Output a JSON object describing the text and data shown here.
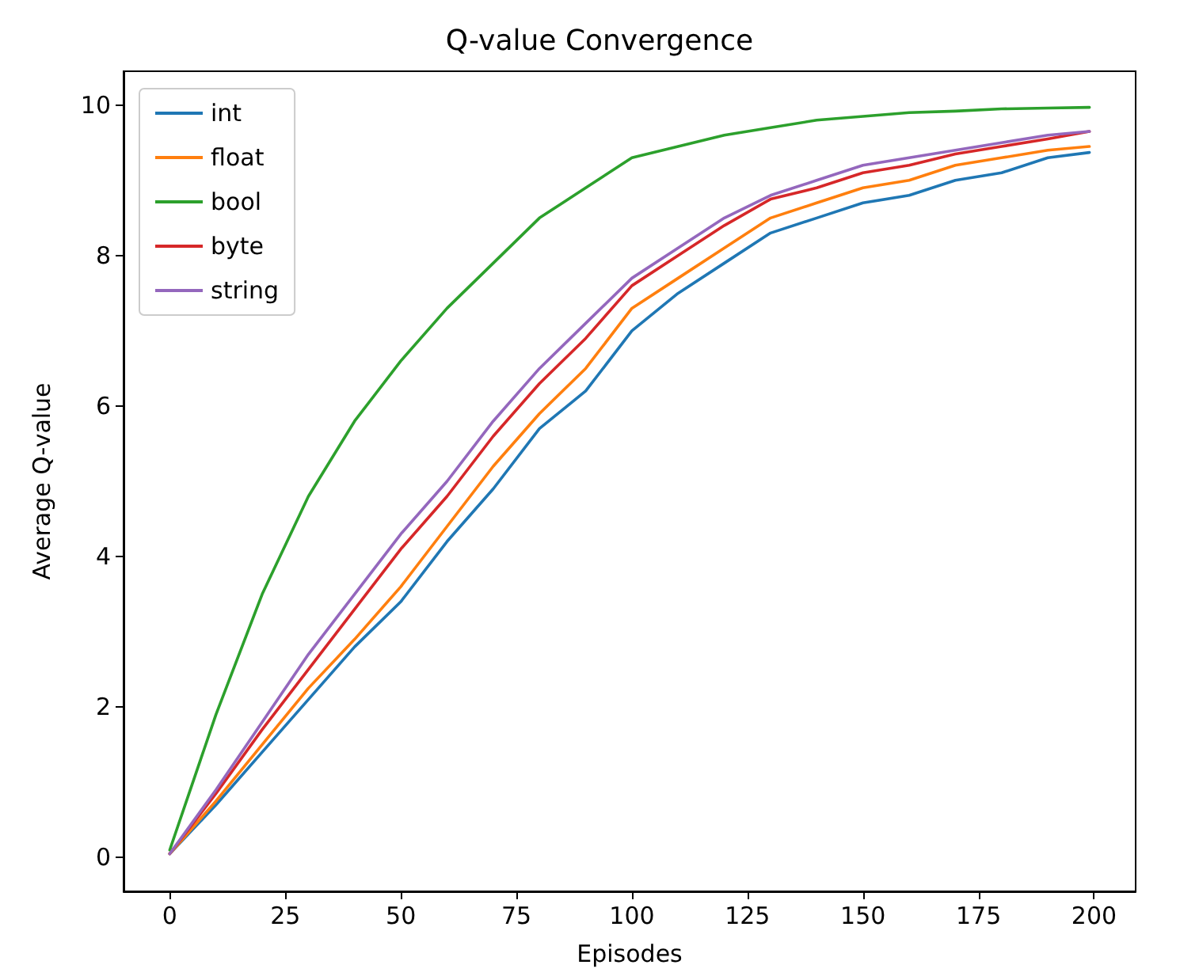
{
  "chart_data": {
    "type": "line",
    "title": "Q-value Convergence",
    "xlabel": "Episodes",
    "ylabel": "Average Q-value",
    "x": [
      0,
      10,
      20,
      30,
      40,
      50,
      60,
      70,
      80,
      90,
      100,
      110,
      120,
      130,
      140,
      150,
      160,
      170,
      180,
      190,
      199
    ],
    "series": [
      {
        "name": "int",
        "color": "#1f77b4",
        "values": [
          0.05,
          0.7,
          1.4,
          2.1,
          2.8,
          3.4,
          4.2,
          4.9,
          5.7,
          6.2,
          7.0,
          7.5,
          7.9,
          8.3,
          8.5,
          8.7,
          8.8,
          9.0,
          9.1,
          9.3,
          9.37
        ]
      },
      {
        "name": "float",
        "color": "#ff7f0e",
        "values": [
          0.05,
          0.75,
          1.5,
          2.25,
          2.9,
          3.6,
          4.4,
          5.2,
          5.9,
          6.5,
          7.3,
          7.7,
          8.1,
          8.5,
          8.7,
          8.9,
          9.0,
          9.2,
          9.3,
          9.4,
          9.45
        ]
      },
      {
        "name": "bool",
        "color": "#2ca02c",
        "values": [
          0.1,
          1.9,
          3.5,
          4.8,
          5.8,
          6.6,
          7.3,
          7.9,
          8.5,
          8.9,
          9.3,
          9.45,
          9.6,
          9.7,
          9.8,
          9.85,
          9.9,
          9.92,
          9.95,
          9.96,
          9.97
        ]
      },
      {
        "name": "byte",
        "color": "#d62728",
        "values": [
          0.05,
          0.85,
          1.7,
          2.5,
          3.3,
          4.1,
          4.8,
          5.6,
          6.3,
          6.9,
          7.6,
          8.0,
          8.4,
          8.75,
          8.9,
          9.1,
          9.2,
          9.35,
          9.45,
          9.55,
          9.65
        ]
      },
      {
        "name": "string",
        "color": "#9467bd",
        "values": [
          0.05,
          0.9,
          1.8,
          2.7,
          3.5,
          4.3,
          5.0,
          5.8,
          6.5,
          7.1,
          7.7,
          8.1,
          8.5,
          8.8,
          9.0,
          9.2,
          9.3,
          9.4,
          9.5,
          9.6,
          9.65
        ]
      }
    ],
    "xlim": [
      -10,
      209
    ],
    "xticks": [
      0,
      25,
      50,
      75,
      100,
      125,
      150,
      175,
      200
    ],
    "ylim": [
      -0.45,
      10.45
    ],
    "yticks": [
      0,
      2,
      4,
      6,
      8,
      10
    ],
    "grid": false,
    "legend": "top left",
    "marker": "none",
    "line_style": "solid"
  }
}
